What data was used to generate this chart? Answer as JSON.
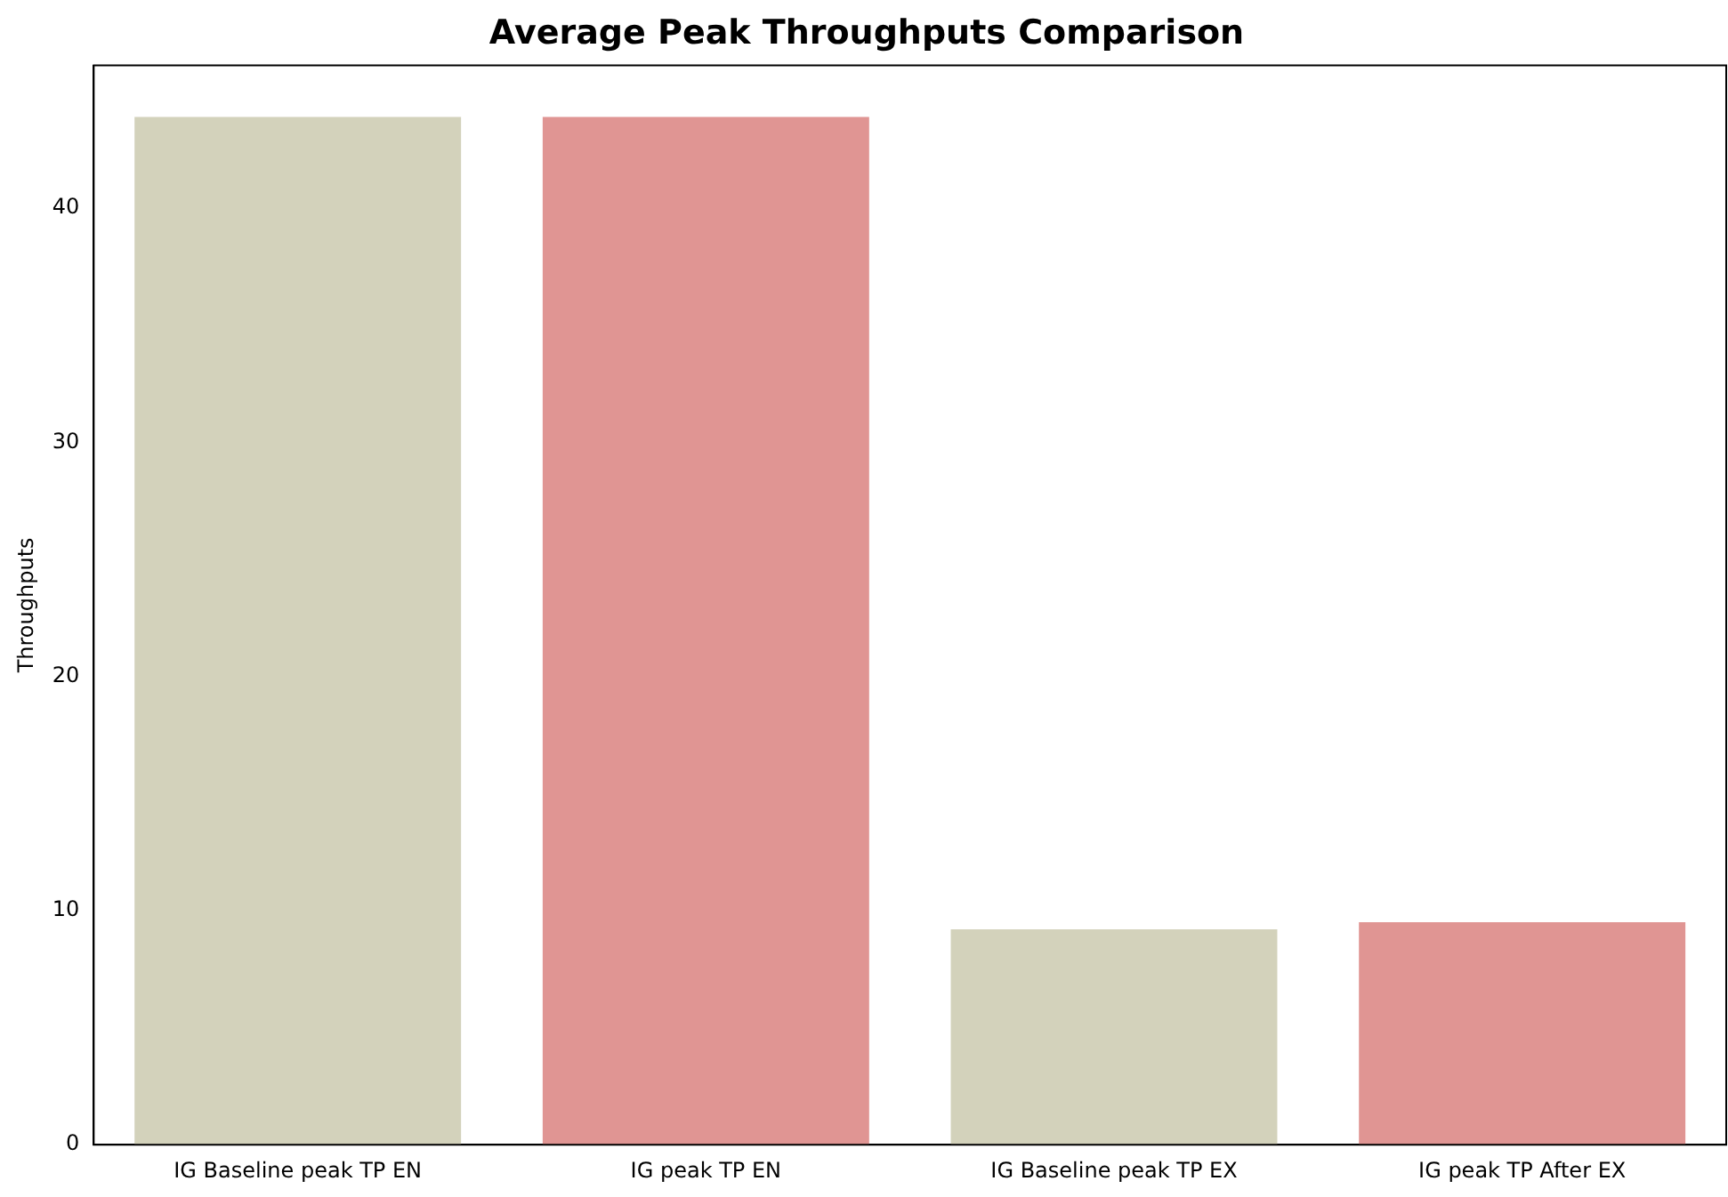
{
  "chart_data": {
    "type": "bar",
    "title": "Average Peak Throughputs Comparison",
    "ylabel": "Throughputs",
    "categories": [
      "IG Baseline peak TP EN",
      "IG peak TP EN",
      "IG Baseline peak TP EX",
      "IG peak TP After EX"
    ],
    "values": [
      43.9,
      43.9,
      9.2,
      9.5
    ],
    "colors": [
      "#d3d2bb",
      "#e09593",
      "#d3d2bb",
      "#e09593"
    ],
    "ylim": [
      0,
      46.1
    ],
    "yticks": [
      0,
      10,
      20,
      30,
      40
    ],
    "grid": false,
    "legend": false
  }
}
